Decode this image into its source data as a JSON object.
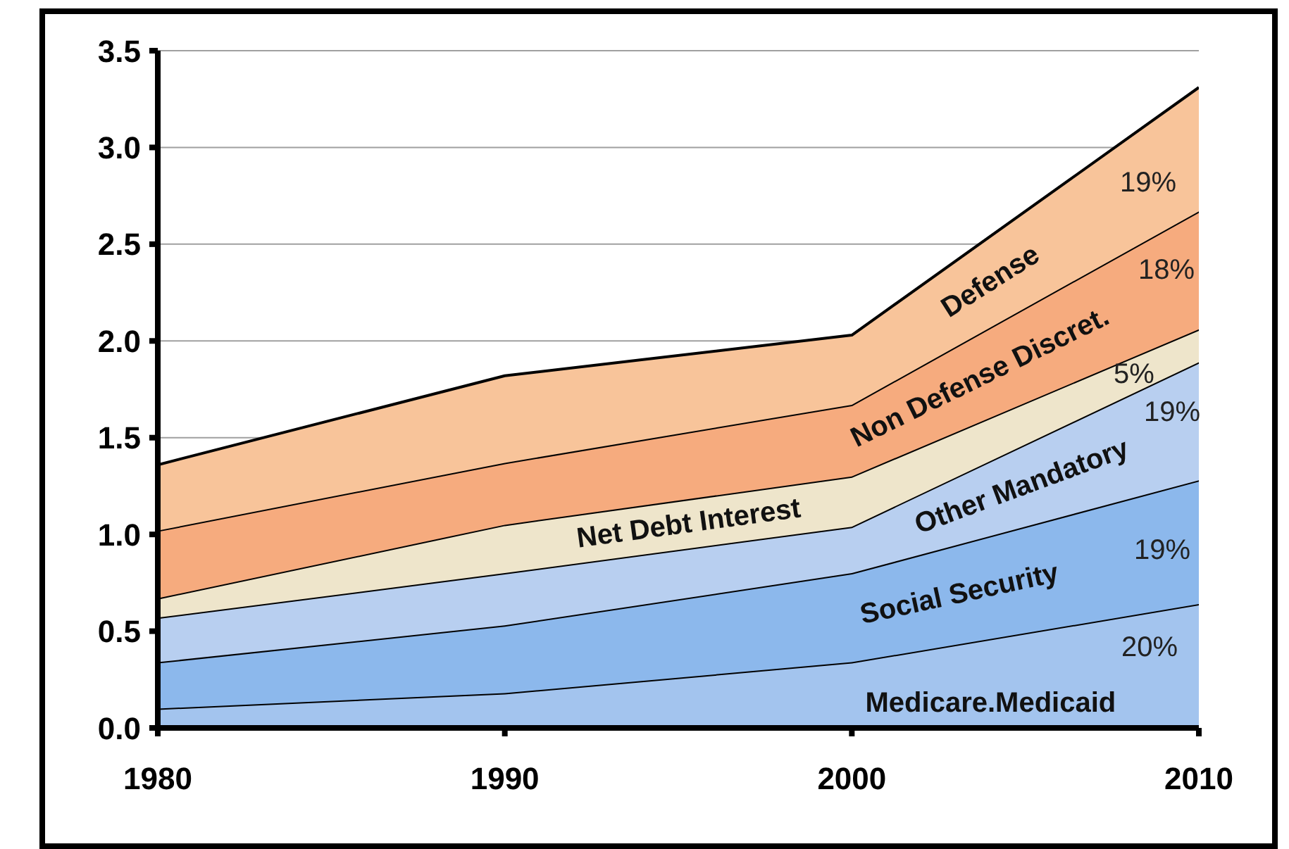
{
  "chart_data": {
    "type": "area",
    "stacked": true,
    "x": [
      1980,
      1990,
      2000,
      2010
    ],
    "xlim": [
      1980,
      2010
    ],
    "xticks": [
      1980,
      1990,
      2000,
      2010
    ],
    "ylim": [
      0,
      3.5
    ],
    "yticks": [
      {
        "value": 0,
        "label": "0.0"
      },
      0.5,
      {
        "value": 1,
        "label": "1.0"
      },
      1.5,
      {
        "value": 2,
        "label": "2.0"
      },
      2.5,
      {
        "value": 3,
        "label": "3.0"
      },
      3.5
    ],
    "grid": "y",
    "series": [
      {
        "name": "Medicare.Medicaid",
        "color": "#a3c4ee",
        "values": [
          0.1,
          0.18,
          0.34,
          0.64
        ]
      },
      {
        "name": "Social Security",
        "color": "#8cb8ec",
        "values": [
          0.24,
          0.35,
          0.46,
          0.64
        ]
      },
      {
        "name": "Other Mandatory",
        "color": "#b8cff0",
        "values": [
          0.23,
          0.27,
          0.24,
          0.61
        ]
      },
      {
        "name": "Net Debt Interest",
        "color": "#eee5cb",
        "values": [
          0.1,
          0.25,
          0.26,
          0.17
        ]
      },
      {
        "name": "Non Defense Discret.",
        "color": "#f6ab7e",
        "values": [
          0.35,
          0.32,
          0.37,
          0.61
        ]
      },
      {
        "name": "Defense",
        "color": "#f8c49a",
        "values": [
          0.34,
          0.45,
          0.36,
          0.64
        ]
      }
    ],
    "annotations": [
      "19%",
      "18%",
      "5%",
      "19%",
      "19%",
      "20%"
    ]
  }
}
